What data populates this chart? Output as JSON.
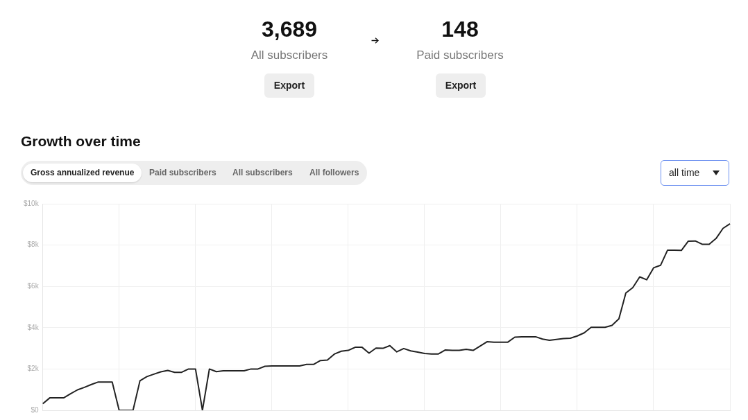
{
  "chart_data": {
    "type": "line",
    "title": "Growth over time",
    "annotations": [
      "3,689",
      "All subscribers",
      "Export",
      "148",
      "Paid subscribers",
      "Export",
      "Gross annualized revenue",
      "Paid subscribers",
      "All subscribers",
      "All followers",
      "all time"
    ],
    "categories": [
      null,
      null,
      null,
      null,
      null,
      null,
      null,
      null,
      null,
      null,
      null,
      null,
      null,
      null,
      null,
      null,
      null,
      null,
      null,
      null,
      null,
      null,
      null,
      null,
      null,
      null,
      null,
      null,
      null,
      null,
      null,
      null,
      null,
      null,
      null,
      null,
      null,
      null,
      null,
      null,
      null,
      null,
      null,
      null,
      null,
      null,
      null,
      null,
      null,
      null,
      null,
      null,
      null,
      null,
      null,
      null,
      null,
      null,
      null,
      null,
      null,
      null,
      null,
      null,
      null,
      null,
      null,
      null,
      null,
      null,
      null,
      null,
      null,
      null,
      null,
      null,
      null,
      null,
      null,
      null,
      null,
      null,
      null,
      null,
      null,
      null,
      null,
      null,
      null,
      null,
      null,
      null,
      null,
      null,
      null,
      null,
      null,
      null,
      null,
      null
    ],
    "series": [
      {
        "color": "#222222",
        "values": [
          320,
          600,
          600,
          600,
          800,
          990,
          1110,
          1250,
          1370,
          1370,
          1370,
          0,
          0,
          0,
          1430,
          1630,
          1750,
          1860,
          1930,
          1840,
          1840,
          2000,
          2000,
          0,
          2000,
          1870,
          1910,
          1910,
          1910,
          1910,
          2000,
          2000,
          2130,
          2150,
          2150,
          2150,
          2150,
          2150,
          2220,
          2220,
          2410,
          2430,
          2720,
          2860,
          2900,
          3050,
          3050,
          2770,
          3010,
          3000,
          3130,
          2830,
          2990,
          2880,
          2820,
          2750,
          2730,
          2730,
          2920,
          2900,
          2900,
          2950,
          2900,
          3110,
          3320,
          3300,
          3300,
          3300,
          3540,
          3560,
          3560,
          3560,
          3450,
          3390,
          3430,
          3470,
          3490,
          3600,
          3750,
          4020,
          4020,
          4020,
          4110,
          4430,
          5680,
          5940,
          6460,
          6320,
          6900,
          7020,
          7750,
          7750,
          7740,
          8190,
          8200,
          8040,
          8040,
          8320,
          8810,
          9030
        ]
      }
    ],
    "ylim": [
      0,
      10000
    ],
    "yticks": [
      {
        "value": 0,
        "label": "$0"
      },
      {
        "value": 2000,
        "label": "$2k"
      },
      {
        "value": 4000,
        "label": "$4k"
      },
      {
        "value": 6000,
        "label": "$6k"
      },
      {
        "value": 8000,
        "label": "$8k"
      },
      {
        "value": 10000,
        "label": "$10k"
      }
    ],
    "tick_labels": "y",
    "grid": true,
    "legend": false,
    "marker": "none",
    "line_style": "solid"
  }
}
